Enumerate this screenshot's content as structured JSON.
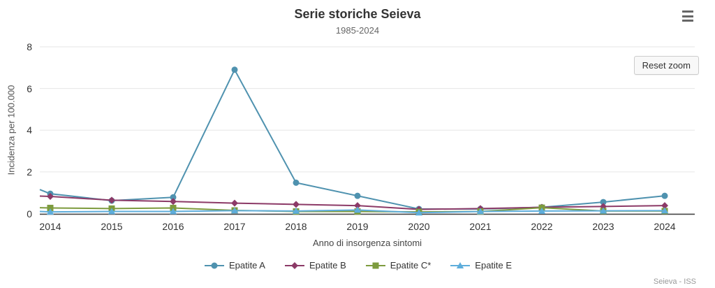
{
  "header": {
    "title": "Serie storiche Seieva",
    "subtitle": "1985-2024"
  },
  "controls": {
    "reset_zoom_label": "Reset zoom",
    "menu_icon": "hamburger-menu-icon"
  },
  "credits_text": "Seieva - ISS",
  "colors": {
    "epatite_a": "#4F92AF",
    "epatite_b": "#8C3A67",
    "epatite_c": "#7D9B3E",
    "epatite_e": "#5EADDB",
    "gridline": "#E6E6E6",
    "axis_line": "#424242",
    "title_text": "#333333",
    "subtitle_text": "#666666",
    "credits_color": "#999999"
  },
  "chart_data": {
    "type": "line",
    "title": "Serie storiche Seieva",
    "subtitle": "1985-2024",
    "xlabel": "Anno di insorgenza sintomi",
    "ylabel": "Incidenza per 100.000",
    "ylim": [
      0,
      8
    ],
    "yticks": [
      0,
      2,
      4,
      6,
      8
    ],
    "grid": "horizontal",
    "legend_position": "bottom-center",
    "zoom_state": "zoomed (Reset zoom visible)",
    "categories": [
      "2014",
      "2015",
      "2016",
      "2017",
      "2018",
      "2019",
      "2020",
      "2021",
      "2022",
      "2023",
      "2024"
    ],
    "series": [
      {
        "name": "Epatite A",
        "color": "#4F92AF",
        "marker": "circle",
        "left_edge_value": 1.15,
        "values": [
          0.95,
          0.62,
          0.78,
          6.9,
          1.48,
          0.85,
          0.22,
          0.22,
          0.3,
          0.55,
          0.85
        ]
      },
      {
        "name": "Epatite B",
        "color": "#8C3A67",
        "marker": "diamond",
        "left_edge_value": 0.84,
        "values": [
          0.82,
          0.64,
          0.58,
          0.5,
          0.44,
          0.38,
          0.2,
          0.24,
          0.3,
          0.34,
          0.38
        ]
      },
      {
        "name": "Epatite C*",
        "color": "#7D9B3E",
        "marker": "square",
        "left_edge_value": 0.28,
        "values": [
          0.27,
          0.24,
          0.27,
          0.15,
          0.1,
          0.1,
          0.08,
          0.1,
          0.28,
          0.12,
          0.12
        ]
      },
      {
        "name": "Epatite E",
        "color": "#5EADDB",
        "marker": "triangle",
        "left_edge_value": 0.1,
        "values": [
          0.08,
          0.1,
          0.1,
          0.14,
          0.12,
          0.17,
          0.04,
          0.1,
          0.12,
          0.13,
          0.14
        ]
      }
    ]
  }
}
